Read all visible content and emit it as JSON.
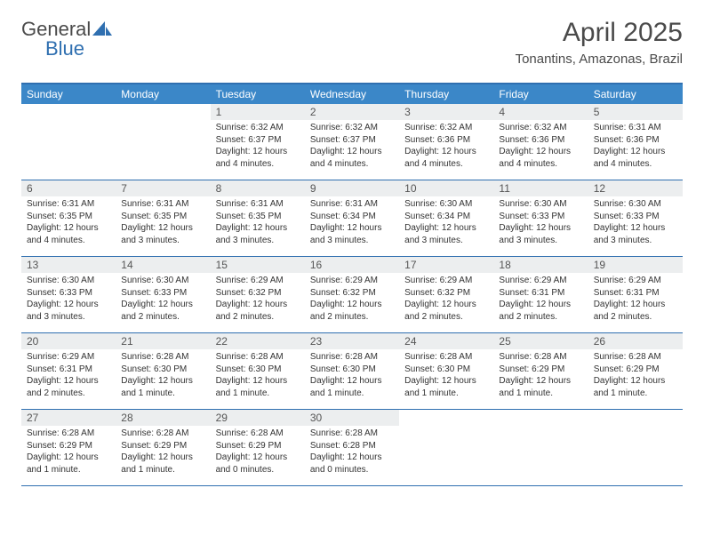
{
  "brand": {
    "part1": "General",
    "part2": "Blue"
  },
  "title": "April 2025",
  "location": "Tonantins, Amazonas, Brazil",
  "colors": {
    "header_bg": "#3b87c8",
    "border": "#2f6fb0",
    "daynum_bg": "#eceeef",
    "text": "#4a4a4a"
  },
  "dow": [
    "Sunday",
    "Monday",
    "Tuesday",
    "Wednesday",
    "Thursday",
    "Friday",
    "Saturday"
  ],
  "weeks": [
    [
      {
        "n": "",
        "sr": "",
        "ss": "",
        "dl": ""
      },
      {
        "n": "",
        "sr": "",
        "ss": "",
        "dl": ""
      },
      {
        "n": "1",
        "sr": "Sunrise: 6:32 AM",
        "ss": "Sunset: 6:37 PM",
        "dl": "Daylight: 12 hours and 4 minutes."
      },
      {
        "n": "2",
        "sr": "Sunrise: 6:32 AM",
        "ss": "Sunset: 6:37 PM",
        "dl": "Daylight: 12 hours and 4 minutes."
      },
      {
        "n": "3",
        "sr": "Sunrise: 6:32 AM",
        "ss": "Sunset: 6:36 PM",
        "dl": "Daylight: 12 hours and 4 minutes."
      },
      {
        "n": "4",
        "sr": "Sunrise: 6:32 AM",
        "ss": "Sunset: 6:36 PM",
        "dl": "Daylight: 12 hours and 4 minutes."
      },
      {
        "n": "5",
        "sr": "Sunrise: 6:31 AM",
        "ss": "Sunset: 6:36 PM",
        "dl": "Daylight: 12 hours and 4 minutes."
      }
    ],
    [
      {
        "n": "6",
        "sr": "Sunrise: 6:31 AM",
        "ss": "Sunset: 6:35 PM",
        "dl": "Daylight: 12 hours and 4 minutes."
      },
      {
        "n": "7",
        "sr": "Sunrise: 6:31 AM",
        "ss": "Sunset: 6:35 PM",
        "dl": "Daylight: 12 hours and 3 minutes."
      },
      {
        "n": "8",
        "sr": "Sunrise: 6:31 AM",
        "ss": "Sunset: 6:35 PM",
        "dl": "Daylight: 12 hours and 3 minutes."
      },
      {
        "n": "9",
        "sr": "Sunrise: 6:31 AM",
        "ss": "Sunset: 6:34 PM",
        "dl": "Daylight: 12 hours and 3 minutes."
      },
      {
        "n": "10",
        "sr": "Sunrise: 6:30 AM",
        "ss": "Sunset: 6:34 PM",
        "dl": "Daylight: 12 hours and 3 minutes."
      },
      {
        "n": "11",
        "sr": "Sunrise: 6:30 AM",
        "ss": "Sunset: 6:33 PM",
        "dl": "Daylight: 12 hours and 3 minutes."
      },
      {
        "n": "12",
        "sr": "Sunrise: 6:30 AM",
        "ss": "Sunset: 6:33 PM",
        "dl": "Daylight: 12 hours and 3 minutes."
      }
    ],
    [
      {
        "n": "13",
        "sr": "Sunrise: 6:30 AM",
        "ss": "Sunset: 6:33 PM",
        "dl": "Daylight: 12 hours and 3 minutes."
      },
      {
        "n": "14",
        "sr": "Sunrise: 6:30 AM",
        "ss": "Sunset: 6:33 PM",
        "dl": "Daylight: 12 hours and 2 minutes."
      },
      {
        "n": "15",
        "sr": "Sunrise: 6:29 AM",
        "ss": "Sunset: 6:32 PM",
        "dl": "Daylight: 12 hours and 2 minutes."
      },
      {
        "n": "16",
        "sr": "Sunrise: 6:29 AM",
        "ss": "Sunset: 6:32 PM",
        "dl": "Daylight: 12 hours and 2 minutes."
      },
      {
        "n": "17",
        "sr": "Sunrise: 6:29 AM",
        "ss": "Sunset: 6:32 PM",
        "dl": "Daylight: 12 hours and 2 minutes."
      },
      {
        "n": "18",
        "sr": "Sunrise: 6:29 AM",
        "ss": "Sunset: 6:31 PM",
        "dl": "Daylight: 12 hours and 2 minutes."
      },
      {
        "n": "19",
        "sr": "Sunrise: 6:29 AM",
        "ss": "Sunset: 6:31 PM",
        "dl": "Daylight: 12 hours and 2 minutes."
      }
    ],
    [
      {
        "n": "20",
        "sr": "Sunrise: 6:29 AM",
        "ss": "Sunset: 6:31 PM",
        "dl": "Daylight: 12 hours and 2 minutes."
      },
      {
        "n": "21",
        "sr": "Sunrise: 6:28 AM",
        "ss": "Sunset: 6:30 PM",
        "dl": "Daylight: 12 hours and 1 minute."
      },
      {
        "n": "22",
        "sr": "Sunrise: 6:28 AM",
        "ss": "Sunset: 6:30 PM",
        "dl": "Daylight: 12 hours and 1 minute."
      },
      {
        "n": "23",
        "sr": "Sunrise: 6:28 AM",
        "ss": "Sunset: 6:30 PM",
        "dl": "Daylight: 12 hours and 1 minute."
      },
      {
        "n": "24",
        "sr": "Sunrise: 6:28 AM",
        "ss": "Sunset: 6:30 PM",
        "dl": "Daylight: 12 hours and 1 minute."
      },
      {
        "n": "25",
        "sr": "Sunrise: 6:28 AM",
        "ss": "Sunset: 6:29 PM",
        "dl": "Daylight: 12 hours and 1 minute."
      },
      {
        "n": "26",
        "sr": "Sunrise: 6:28 AM",
        "ss": "Sunset: 6:29 PM",
        "dl": "Daylight: 12 hours and 1 minute."
      }
    ],
    [
      {
        "n": "27",
        "sr": "Sunrise: 6:28 AM",
        "ss": "Sunset: 6:29 PM",
        "dl": "Daylight: 12 hours and 1 minute."
      },
      {
        "n": "28",
        "sr": "Sunrise: 6:28 AM",
        "ss": "Sunset: 6:29 PM",
        "dl": "Daylight: 12 hours and 1 minute."
      },
      {
        "n": "29",
        "sr": "Sunrise: 6:28 AM",
        "ss": "Sunset: 6:29 PM",
        "dl": "Daylight: 12 hours and 0 minutes."
      },
      {
        "n": "30",
        "sr": "Sunrise: 6:28 AM",
        "ss": "Sunset: 6:28 PM",
        "dl": "Daylight: 12 hours and 0 minutes."
      },
      {
        "n": "",
        "sr": "",
        "ss": "",
        "dl": ""
      },
      {
        "n": "",
        "sr": "",
        "ss": "",
        "dl": ""
      },
      {
        "n": "",
        "sr": "",
        "ss": "",
        "dl": ""
      }
    ]
  ]
}
